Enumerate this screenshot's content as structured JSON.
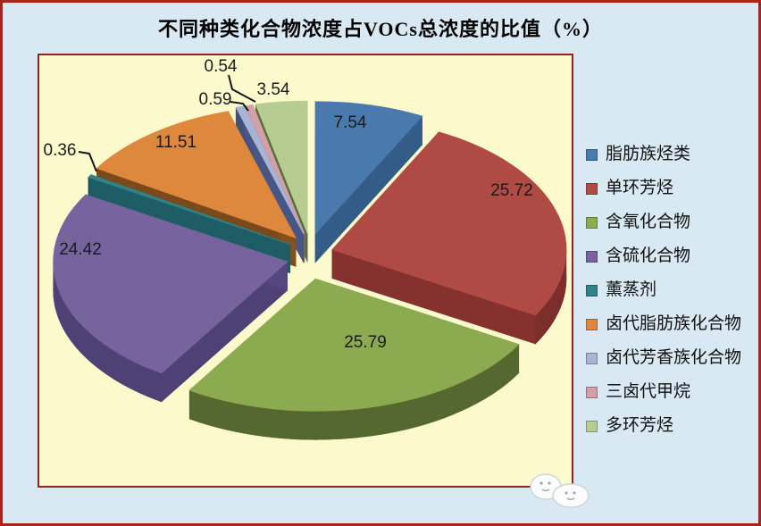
{
  "window": {
    "background": "#d9e9f3",
    "border_color": "#a8241e"
  },
  "chart_data": {
    "type": "pie",
    "style": "3d-exploded",
    "title": "不同种类化合物浓度占VOCs总浓度的比值（%）",
    "unit": "%",
    "start_angle_deg": 0,
    "direction": "clockwise",
    "legend_position": "right",
    "plot_background": "#fcf9cc",
    "plot_border_color": "#8e2424",
    "slices": [
      {
        "label": "脂肪族烃类",
        "value": 7.54,
        "display": "7.54",
        "color": "#4a79ad",
        "side_color": "#30557e"
      },
      {
        "label": "单环芳烃",
        "value": 25.72,
        "display": "25.72",
        "color": "#b04a45",
        "side_color": "#7b2e2b"
      },
      {
        "label": "含氧化合物",
        "value": 25.79,
        "display": "25.79",
        "color": "#8caa50",
        "side_color": "#55682f"
      },
      {
        "label": "含硫化合物",
        "value": 24.42,
        "display": "24.42",
        "color": "#77649f",
        "side_color": "#4e4175"
      },
      {
        "label": "薰蒸剂",
        "value": 0.36,
        "display": "0.36",
        "color": "#2f8288",
        "side_color": "#1d565e"
      },
      {
        "label": "卤代脂肪族化合物",
        "value": 11.51,
        "display": "11.51",
        "color": "#dd883c",
        "side_color": "#7a4a1c"
      },
      {
        "label": "卤代芳香族化合物",
        "value": 0.59,
        "display": "0.59",
        "color": "#a9b4d4",
        "side_color": "#42507a"
      },
      {
        "label": "三卤代甲烷",
        "value": 0.54,
        "display": "0.54",
        "color": "#d2a0a6",
        "side_color": "#955f68"
      },
      {
        "label": "多环芳烃",
        "value": 3.54,
        "display": "3.54",
        "color": "#b7cc90",
        "side_color": "#5a6b3c"
      }
    ]
  },
  "watermark": {
    "name": "cloud-mascots"
  }
}
